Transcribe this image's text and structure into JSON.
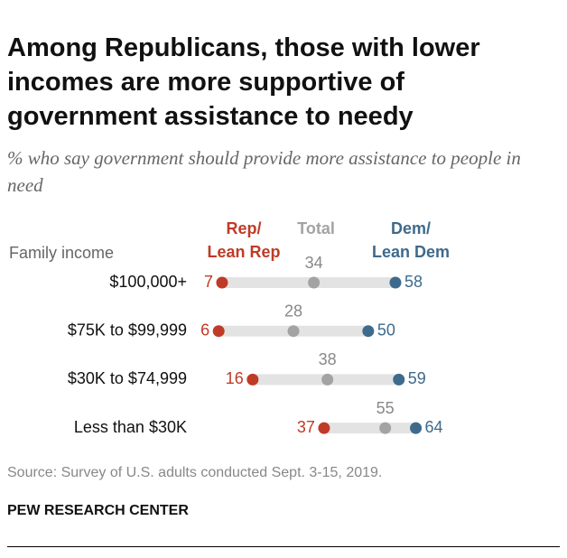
{
  "chart_data": {
    "type": "dot",
    "title": "Among Republicans, those with lower incomes are more supportive of government assistance to needy",
    "subtitle": "% who say government should provide more assistance to people in need",
    "category_label": "Family income",
    "categories": [
      "$100,000+",
      "$75K to $99,999",
      "$30K to $74,999",
      "Less than $30K"
    ],
    "series": [
      {
        "name": "Rep/\nLean Rep",
        "color": "#bf3b27",
        "values": [
          7,
          6,
          16,
          37
        ]
      },
      {
        "name": "Total",
        "color": "#a3a3a3",
        "values": [
          34,
          28,
          38,
          55
        ]
      },
      {
        "name": "Dem/\nLean Dem",
        "color": "#3e6a8c",
        "values": [
          58,
          50,
          59,
          64
        ]
      }
    ],
    "source": "Source: Survey of U.S. adults conducted Sept. 3-15, 2019.",
    "footer": "PEW RESEARCH CENTER"
  }
}
